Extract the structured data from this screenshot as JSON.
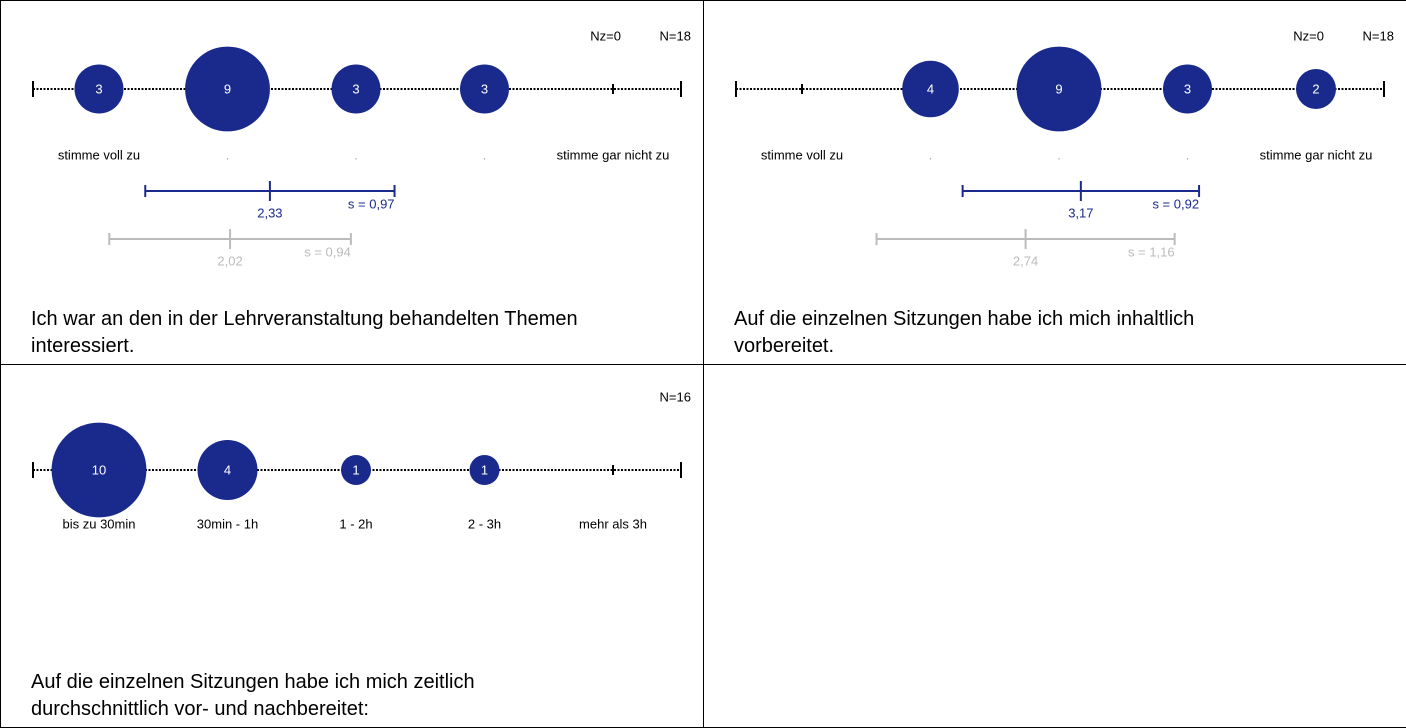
{
  "chart_data": [
    {
      "type": "bubble",
      "color": "#1a2a8c",
      "compare_color": "#bbbbbb",
      "nz": "Nz=0",
      "n": {
        "value": 18,
        "label": "N=18"
      },
      "categories": [
        "stimme voll zu",
        ".",
        ".",
        ".",
        "stimme gar nicht zu"
      ],
      "values": [
        3,
        9,
        3,
        3,
        0
      ],
      "mean": {
        "value": 2.33,
        "label": "2,33"
      },
      "s": {
        "value": 0.97,
        "label": "s = 0,97"
      },
      "compare_mean": {
        "value": 2.02,
        "label": "2,02"
      },
      "compare_s": {
        "value": 0.94,
        "label": "s = 0,94"
      },
      "question": "Ich war an den in der Lehrveranstaltung behandelten Themen interessiert."
    },
    {
      "type": "bubble",
      "color": "#1a2a8c",
      "compare_color": "#bbbbbb",
      "nz": "Nz=0",
      "n": {
        "value": 18,
        "label": "N=18"
      },
      "categories": [
        "stimme voll zu",
        ".",
        ".",
        ".",
        "stimme gar nicht zu"
      ],
      "values": [
        0,
        4,
        9,
        3,
        2
      ],
      "mean": {
        "value": 3.17,
        "label": "3,17"
      },
      "s": {
        "value": 0.92,
        "label": "s = 0,92"
      },
      "compare_mean": {
        "value": 2.74,
        "label": "2,74"
      },
      "compare_s": {
        "value": 1.16,
        "label": "s = 1,16"
      },
      "question": "Auf die einzelnen Sitzungen habe ich mich inhaltlich vorbereitet."
    },
    {
      "type": "bubble",
      "color": "#1a2a8c",
      "n": {
        "value": 16,
        "label": "N=16"
      },
      "categories": [
        "bis zu 30min",
        "30min - 1h",
        "1 - 2h",
        "2 - 3h",
        "mehr als 3h"
      ],
      "values": [
        10,
        4,
        1,
        1,
        0
      ],
      "question": "Auf die einzelnen Sitzungen habe ich mich zeitlich durchschnittlich vor- und nachbereitet:"
    }
  ]
}
